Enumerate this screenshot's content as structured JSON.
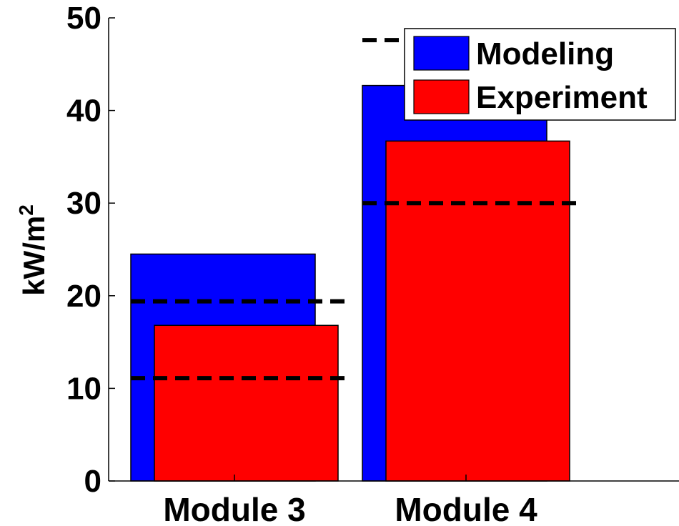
{
  "chart_data": {
    "type": "bar",
    "categories": [
      "Module 3",
      "Module 4"
    ],
    "series": [
      {
        "name": "Modeling",
        "values": [
          24.5,
          42.7
        ],
        "color": "#0000ff"
      },
      {
        "name": "Experiment",
        "values": [
          16.8,
          36.7
        ],
        "color": "#ff0000"
      }
    ],
    "reference_lines": [
      {
        "category": "Module 3",
        "values": [
          19.4,
          11.1
        ]
      },
      {
        "category": "Module 4",
        "values": [
          47.6,
          30.0
        ]
      }
    ],
    "ylabel": "kW/m",
    "ylabel_superscript": "2",
    "ylim": [
      0,
      50
    ],
    "yticks": [
      "0",
      "10",
      "20",
      "30",
      "40",
      "50"
    ],
    "legend": {
      "position": "top-right"
    },
    "grid": false,
    "bar_style": "overlapping"
  }
}
